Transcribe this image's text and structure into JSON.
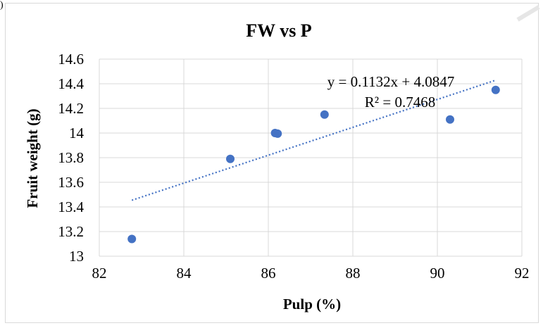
{
  "corner_mark": ")",
  "chart_data": {
    "type": "scatter",
    "title": "FW vs P",
    "xlabel": "Pulp (%)",
    "ylabel": "Fruit weight (g)",
    "xlim": [
      82,
      92
    ],
    "ylim": [
      13,
      14.6
    ],
    "x_ticks": [
      82,
      84,
      86,
      88,
      90,
      92
    ],
    "y_ticks": [
      13,
      13.2,
      13.4,
      13.6,
      13.8,
      14,
      14.2,
      14.4,
      14.6
    ],
    "y_tick_labels": [
      "13",
      "13.2",
      "13.4",
      "13.6",
      "13.8",
      "14",
      "14.2",
      "14.4",
      "14.6"
    ],
    "grid": true,
    "points": [
      {
        "x": 82.77,
        "y": 13.14
      },
      {
        "x": 85.1,
        "y": 13.79
      },
      {
        "x": 86.16,
        "y": 14.0
      },
      {
        "x": 86.22,
        "y": 13.995
      },
      {
        "x": 87.33,
        "y": 14.15
      },
      {
        "x": 90.3,
        "y": 14.11
      },
      {
        "x": 91.38,
        "y": 14.35
      }
    ],
    "trendline": {
      "type": "linear",
      "slope": 0.1132,
      "intercept": 4.0847,
      "x_range": [
        82.77,
        91.38
      ],
      "equation_text": "y = 0.1132x + 4.0847",
      "r2_text": "R² = 0.7468"
    },
    "colors": {
      "marker": "#4472c4",
      "trendline": "#4472c4",
      "grid": "#d9d9d9"
    }
  }
}
